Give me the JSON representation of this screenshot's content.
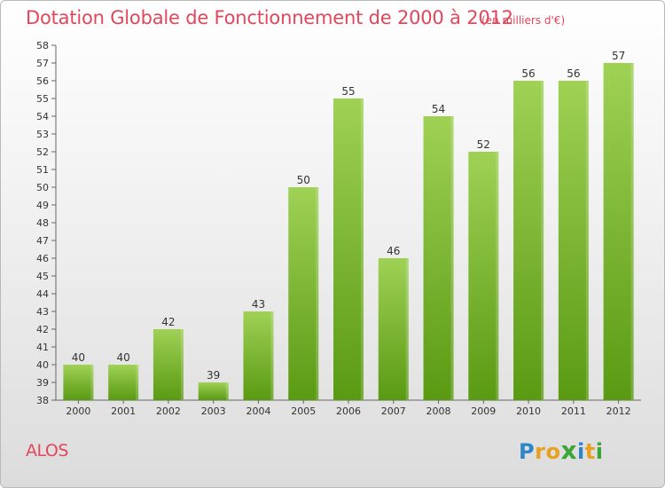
{
  "header": {
    "title": "Dotation Globale de Fonctionnement de 2000 à 2012",
    "unit_note": "(en milliers d'€)"
  },
  "footer": {
    "place_name": "ALOS",
    "brand_letters": [
      "P",
      "r",
      "o",
      "x",
      "i",
      "t",
      "i"
    ]
  },
  "colors": {
    "title": "#e3465a",
    "bar_top": "#9fd155",
    "bar_bottom": "#5a9a13",
    "brand": [
      "#2e86c8",
      "#e8a020",
      "#e8a020",
      "#3aa636",
      "#2e86c8",
      "#e8a020",
      "#3aa636"
    ]
  },
  "chart_data": {
    "type": "bar",
    "title": "Dotation Globale de Fonctionnement de 2000 à 2012",
    "subtitle": "(en milliers d'€)",
    "xlabel": "",
    "ylabel": "",
    "categories": [
      "2000",
      "2001",
      "2002",
      "2003",
      "2004",
      "2005",
      "2006",
      "2007",
      "2008",
      "2009",
      "2010",
      "2011",
      "2012"
    ],
    "values": [
      40,
      40,
      42,
      39,
      43,
      50,
      55,
      46,
      54,
      52,
      56,
      56,
      57
    ],
    "ylim": [
      38,
      58
    ],
    "yticks": [
      38,
      39,
      40,
      41,
      42,
      43,
      44,
      45,
      46,
      47,
      48,
      49,
      50,
      51,
      52,
      53,
      54,
      55,
      56,
      57,
      58
    ],
    "grid": false,
    "legend": "none"
  }
}
